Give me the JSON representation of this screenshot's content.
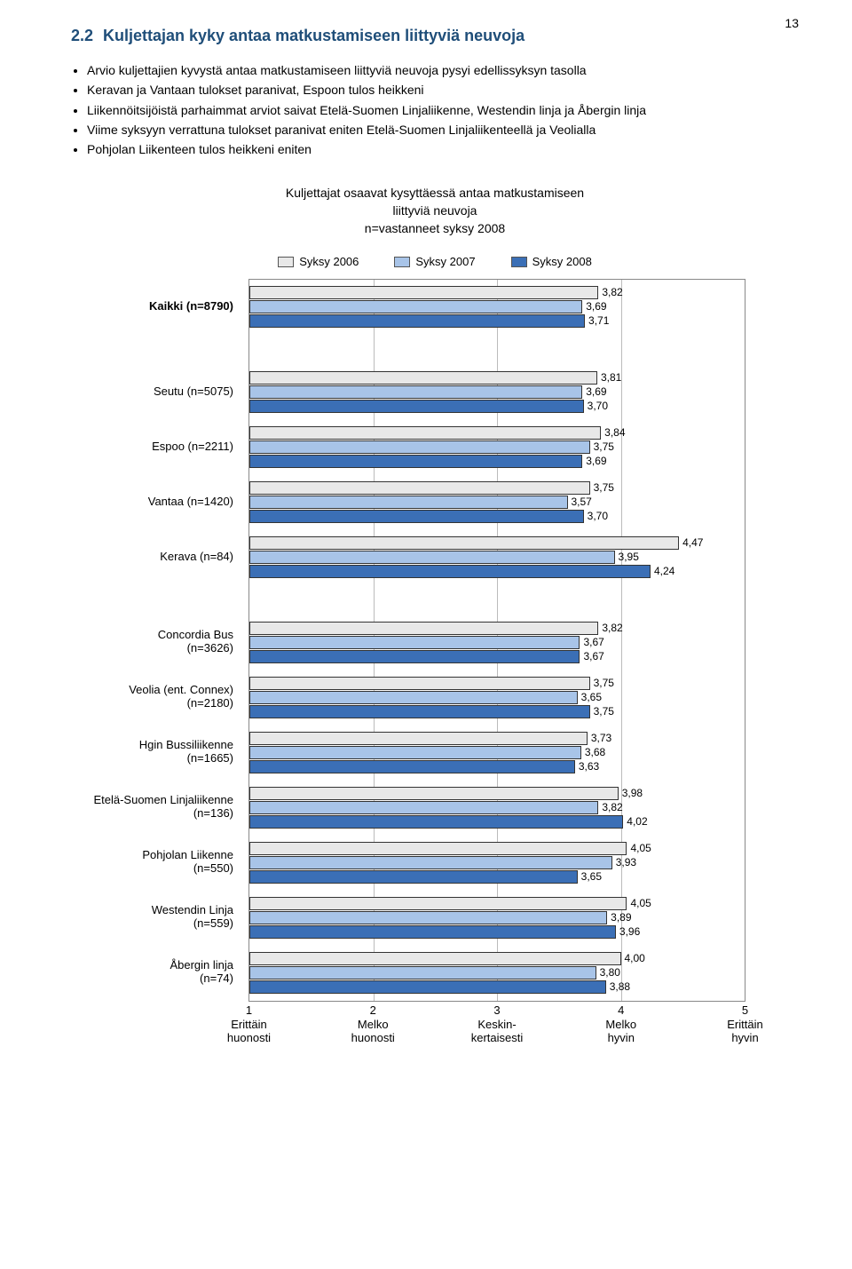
{
  "page_number": "13",
  "heading_number": "2.2",
  "heading_text": "Kuljettajan kyky antaa matkustamiseen liittyviä neuvoja",
  "bullets": [
    "Arvio kuljettajien kyvystä antaa matkustamiseen liittyviä neuvoja pysyi edellissyksyn tasolla",
    "Keravan ja Vantaan tulokset paranivat, Espoon tulos heikkeni",
    "Liikennöitsijöistä parhaimmat arviot saivat Etelä-Suomen Linjaliikenne, Westendin linja ja Åbergin linja",
    "Viime syksyyn verrattuna tulokset paranivat eniten Etelä-Suomen Linjaliikenteellä ja Veolialla",
    "Pohjolan Liikenteen tulos heikkeni eniten"
  ],
  "chart": {
    "type": "bar",
    "title_lines": [
      "Kuljettajat osaavat kysyttäessä antaa matkustamiseen",
      "liittyviä neuvoja",
      "n=vastanneet syksy 2008"
    ],
    "legend": [
      {
        "label": "Syksy 2006",
        "color": "#e8e8e8"
      },
      {
        "label": "Syksy 2007",
        "color": "#a8c4e8"
      },
      {
        "label": "Syksy 2008",
        "color": "#3b6fb6"
      }
    ],
    "xlim": [
      1,
      5
    ],
    "xticks": [
      {
        "pos": 1,
        "num": "1",
        "top": "Erittäin",
        "bot": "huonosti"
      },
      {
        "pos": 2,
        "num": "2",
        "top": "Melko",
        "bot": "huonosti"
      },
      {
        "pos": 3,
        "num": "3",
        "top": "Keskin-",
        "bot": "kertaisesti"
      },
      {
        "pos": 4,
        "num": "4",
        "top": "Melko",
        "bot": "hyvin"
      },
      {
        "pos": 5,
        "num": "5",
        "top": "Erittäin",
        "bot": "hyvin"
      }
    ],
    "border_color": "#888888",
    "grid_color": "#bbbbbb",
    "bar_border": "#333333",
    "label_fontsize": 13,
    "value_fontsize": 12,
    "groups": [
      {
        "gap_before": "none",
        "rows": [
          {
            "label": "Kaikki (n=8790)",
            "bold": true,
            "vals": [
              3.82,
              3.69,
              3.71
            ]
          }
        ]
      },
      {
        "gap_before": "large",
        "rows": [
          {
            "label": "Seutu (n=5075)",
            "vals": [
              3.81,
              3.69,
              3.7
            ]
          },
          {
            "label": "Espoo (n=2211)",
            "vals": [
              3.84,
              3.75,
              3.69
            ]
          },
          {
            "label": "Vantaa (n=1420)",
            "vals": [
              3.75,
              3.57,
              3.7
            ]
          },
          {
            "label": "Kerava (n=84)",
            "vals": [
              4.47,
              3.95,
              4.24
            ]
          }
        ]
      },
      {
        "gap_before": "large",
        "rows": [
          {
            "label": "Concordia Bus\n(n=3626)",
            "vals": [
              3.82,
              3.67,
              3.67
            ]
          },
          {
            "label": "Veolia (ent. Connex)\n(n=2180)",
            "vals": [
              3.75,
              3.65,
              3.75
            ]
          },
          {
            "label": "Hgin Bussiliikenne\n(n=1665)",
            "vals": [
              3.73,
              3.68,
              3.63
            ]
          },
          {
            "label": "Etelä-Suomen Linjaliikenne\n(n=136)",
            "vals": [
              3.98,
              3.82,
              4.02
            ]
          },
          {
            "label": "Pohjolan Liikenne\n(n=550)",
            "vals": [
              4.05,
              3.93,
              3.65
            ]
          },
          {
            "label": "Westendin Linja\n(n=559)",
            "vals": [
              4.05,
              3.89,
              3.96
            ]
          },
          {
            "label": "Åbergin linja\n(n=74)",
            "vals": [
              4.0,
              3.8,
              3.88
            ]
          }
        ]
      }
    ]
  }
}
